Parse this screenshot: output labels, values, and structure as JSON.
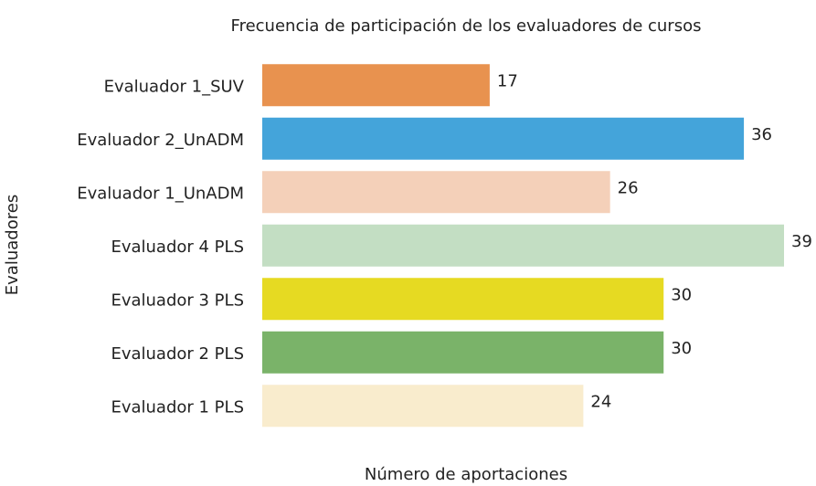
{
  "chart_data": {
    "type": "barh",
    "title": "Frecuencia de participación de los evaluadores de cursos",
    "xlabel": "Número de aportaciones",
    "ylabel": "Evaluadores",
    "categories": [
      "Evaluador 1_SUV",
      "Evaluador 2_UnADM",
      "Evaluador 1_UnADM",
      "Evaluador 4 PLS",
      "Evaluador 3 PLS",
      "Evaluador 2 PLS",
      "Evaluador 1 PLS"
    ],
    "values": [
      17,
      36,
      26,
      39,
      30,
      30,
      24
    ],
    "colors": [
      "#e8924f",
      "#44a4da",
      "#f4d0b9",
      "#c3dec3",
      "#e6da22",
      "#7ab369",
      "#f9eccd"
    ],
    "xlim": [
      0,
      39
    ]
  }
}
